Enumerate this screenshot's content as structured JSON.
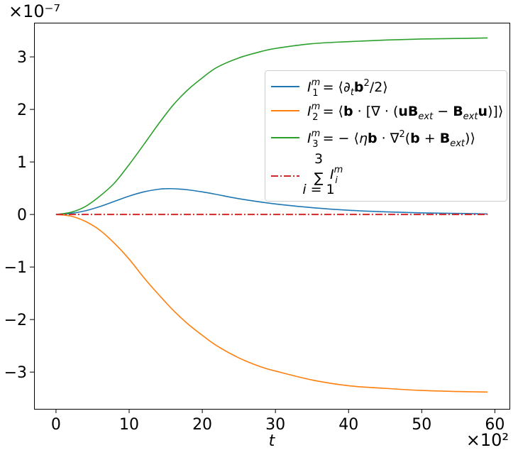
{
  "chart_data": {
    "type": "line",
    "xlabel": "t",
    "x_offset_label": "×10²",
    "y_offset_label": "×10⁻⁷",
    "xlim": [
      -3,
      62
    ],
    "ylim": [
      -3.7,
      3.65
    ],
    "xticks": [
      0,
      10,
      20,
      30,
      40,
      50,
      60
    ],
    "yticks": [
      -3,
      -2,
      -1,
      0,
      1,
      2,
      3
    ],
    "xtick_labels": [
      "0",
      "10",
      "20",
      "30",
      "40",
      "50",
      "60"
    ],
    "ytick_labels": [
      "−3",
      "−2",
      "−1",
      "0",
      "1",
      "2",
      "3"
    ],
    "legend_position": "upper-right",
    "grid": false,
    "series": [
      {
        "name": "I_1^m = ⟨∂_t b²/2⟩",
        "color": "#1f77b4",
        "style": "solid",
        "x": [
          0,
          2,
          4,
          6,
          8,
          10,
          12,
          14,
          15,
          16,
          18,
          20,
          22,
          25,
          30,
          35,
          40,
          45,
          50,
          55,
          59
        ],
        "y": [
          0,
          0.02,
          0.07,
          0.15,
          0.25,
          0.35,
          0.43,
          0.48,
          0.49,
          0.49,
          0.47,
          0.43,
          0.38,
          0.3,
          0.2,
          0.13,
          0.08,
          0.05,
          0.03,
          0.02,
          0.01
        ]
      },
      {
        "name": "I_2^m = ⟨b·[∇·(uB_ext − B_ext u)]⟩",
        "color": "#ff7f0e",
        "style": "solid",
        "x": [
          0,
          2,
          4,
          6,
          8,
          10,
          12,
          14,
          16,
          18,
          20,
          22,
          25,
          28,
          30,
          35,
          40,
          45,
          50,
          55,
          59
        ],
        "y": [
          0,
          -0.03,
          -0.13,
          -0.3,
          -0.55,
          -0.85,
          -1.2,
          -1.52,
          -1.82,
          -2.08,
          -2.3,
          -2.5,
          -2.73,
          -2.9,
          -2.98,
          -3.15,
          -3.26,
          -3.31,
          -3.35,
          -3.37,
          -3.38
        ]
      },
      {
        "name": "I_3^m = −⟨ηb·∇²(b + B_ext)⟩",
        "color": "#2ca02c",
        "style": "solid",
        "x": [
          0,
          2,
          4,
          6,
          8,
          10,
          12,
          14,
          16,
          18,
          20,
          22,
          25,
          28,
          30,
          35,
          40,
          45,
          50,
          55,
          59
        ],
        "y": [
          0,
          0.04,
          0.15,
          0.35,
          0.6,
          0.95,
          1.33,
          1.72,
          2.08,
          2.37,
          2.6,
          2.8,
          2.98,
          3.1,
          3.16,
          3.25,
          3.29,
          3.32,
          3.34,
          3.35,
          3.36
        ]
      },
      {
        "name": "Σ_{i=1}^{3} I_i^m",
        "color": "#d62728",
        "style": "dashdot",
        "x": [
          0,
          59
        ],
        "y": [
          0,
          0
        ]
      }
    ]
  }
}
